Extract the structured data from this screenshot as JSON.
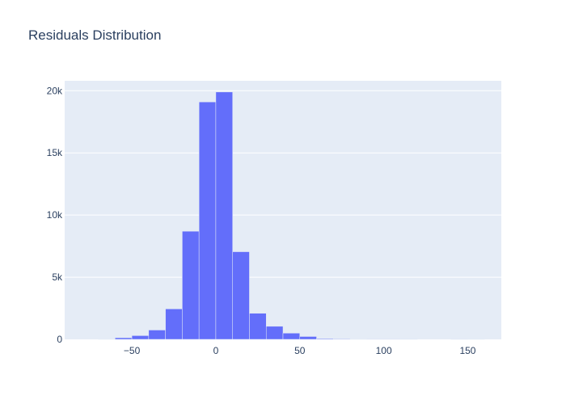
{
  "chart_data": {
    "type": "bar",
    "title": "Residuals Distribution",
    "xlabel": "",
    "ylabel": "",
    "bin_width": 10,
    "bins": [
      {
        "x0": -70,
        "x1": -60,
        "count": 30
      },
      {
        "x0": -60,
        "x1": -50,
        "count": 130
      },
      {
        "x0": -50,
        "x1": -40,
        "count": 300
      },
      {
        "x0": -40,
        "x1": -30,
        "count": 750
      },
      {
        "x0": -30,
        "x1": -20,
        "count": 2450
      },
      {
        "x0": -20,
        "x1": -10,
        "count": 8700
      },
      {
        "x0": -10,
        "x1": 0,
        "count": 19100
      },
      {
        "x0": 0,
        "x1": 10,
        "count": 19900
      },
      {
        "x0": 10,
        "x1": 20,
        "count": 7050
      },
      {
        "x0": 20,
        "x1": 30,
        "count": 2100
      },
      {
        "x0": 30,
        "x1": 40,
        "count": 1050
      },
      {
        "x0": 40,
        "x1": 50,
        "count": 500
      },
      {
        "x0": 50,
        "x1": 60,
        "count": 230
      },
      {
        "x0": 60,
        "x1": 70,
        "count": 60
      },
      {
        "x0": 70,
        "x1": 80,
        "count": 40
      },
      {
        "x0": 80,
        "x1": 90,
        "count": 30
      },
      {
        "x0": 90,
        "x1": 100,
        "count": 10
      },
      {
        "x0": 100,
        "x1": 110,
        "count": 5
      },
      {
        "x0": 110,
        "x1": 120,
        "count": 3
      },
      {
        "x0": 140,
        "x1": 150,
        "count": 2
      },
      {
        "x0": 150,
        "x1": 160,
        "count": 1
      }
    ],
    "xlim": [
      -90,
      170
    ],
    "ylim": [
      0,
      20800
    ],
    "xticks": [
      -50,
      0,
      50,
      100,
      150
    ],
    "xtick_labels": [
      "−50",
      "0",
      "50",
      "100",
      "150"
    ],
    "yticks": [
      0,
      5000,
      10000,
      15000,
      20000
    ],
    "ytick_labels": [
      "0",
      "5k",
      "10k",
      "15k",
      "20k"
    ],
    "grid": true,
    "colors": {
      "bar": "#636efa",
      "plot_background": "#e5ecf6",
      "grid": "#ffffff",
      "text": "#2a3f5f"
    }
  }
}
